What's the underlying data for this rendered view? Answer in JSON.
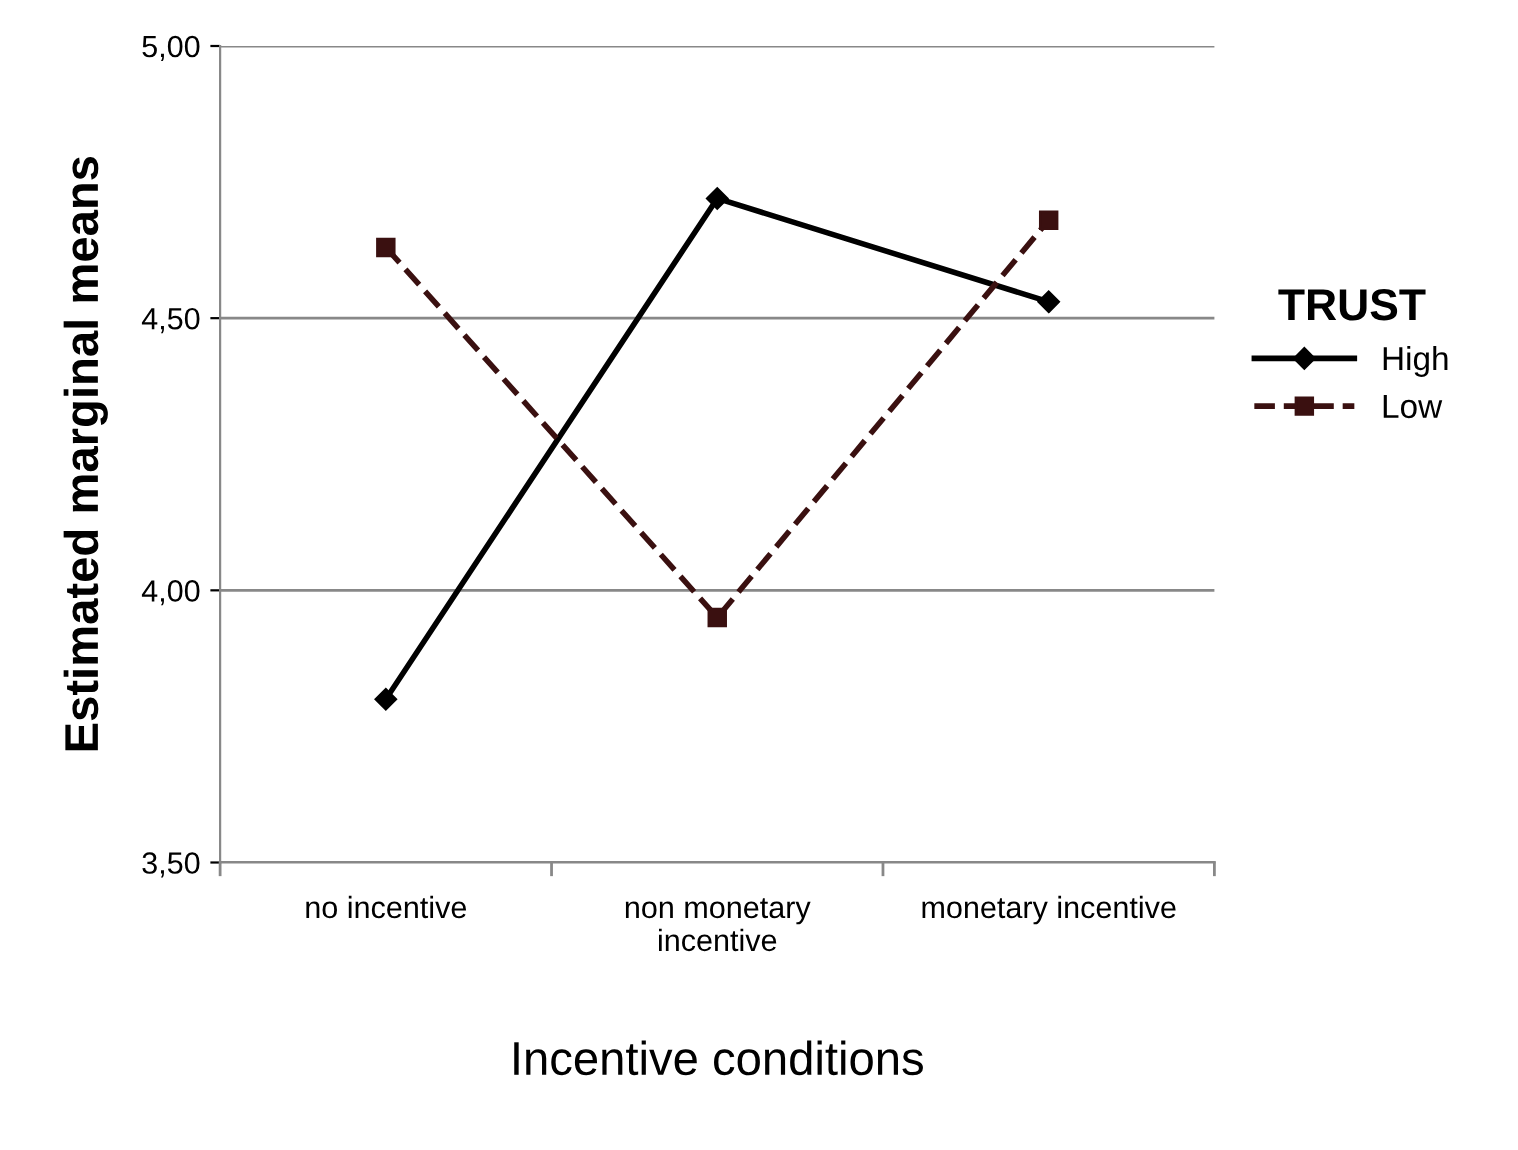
{
  "chart_data": {
    "type": "line",
    "xlabel": "Incentive conditions",
    "ylabel": "Estimated marginal means",
    "legend_title": "TRUST",
    "categories": [
      "no incentive",
      "non monetary\nincentive",
      "monetary incentive"
    ],
    "series": [
      {
        "name": "High",
        "color": "#000000",
        "values": [
          3.8,
          4.72,
          4.53
        ],
        "marker": "diamond",
        "line_style": "solid"
      },
      {
        "name": "Low",
        "color": "#3a1010",
        "values": [
          4.63,
          3.95,
          4.68
        ],
        "marker": "square",
        "line_style": "dashed"
      }
    ],
    "ylim": [
      3.5,
      5.0
    ],
    "yticks": [
      {
        "value": 3.5,
        "label": "3,50"
      },
      {
        "value": 4.0,
        "label": "4,00"
      },
      {
        "value": 4.5,
        "label": "4,50"
      },
      {
        "value": 5.0,
        "label": "5,00"
      }
    ],
    "grid": "y",
    "legend": "right"
  }
}
